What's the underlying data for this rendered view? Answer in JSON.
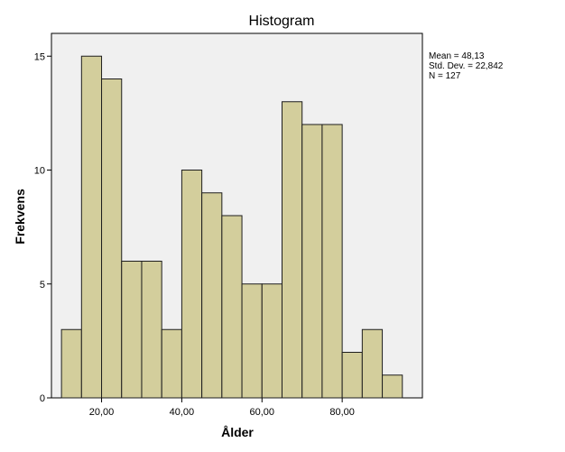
{
  "chart_data": {
    "type": "bar",
    "title": "Histogram",
    "xlabel": "Ålder",
    "ylabel": "Frekvens",
    "bin_width": 5,
    "bin_starts": [
      10,
      15,
      20,
      25,
      30,
      35,
      40,
      45,
      50,
      55,
      60,
      65,
      70,
      75,
      80,
      85,
      90
    ],
    "values": [
      3,
      15,
      14,
      6,
      6,
      3,
      10,
      9,
      8,
      5,
      5,
      13,
      12,
      12,
      2,
      3,
      1
    ],
    "xlim": [
      7.5,
      100
    ],
    "ylim": [
      0,
      16
    ],
    "x_ticks": [
      20,
      40,
      60,
      80
    ],
    "x_tick_labels": [
      "20,00",
      "40,00",
      "60,00",
      "80,00"
    ],
    "y_ticks": [
      0,
      5,
      10,
      15
    ],
    "y_tick_labels": [
      "0",
      "5",
      "10",
      "15"
    ],
    "grid": false,
    "bar_fill": "#d3ce9c",
    "bar_stroke": "#1e1e1e",
    "plot_background": "#f0f0f0",
    "stats": {
      "mean": "Mean = 48,13",
      "std_dev": "Std. Dev. = 22,842",
      "n": "N = 127"
    }
  }
}
